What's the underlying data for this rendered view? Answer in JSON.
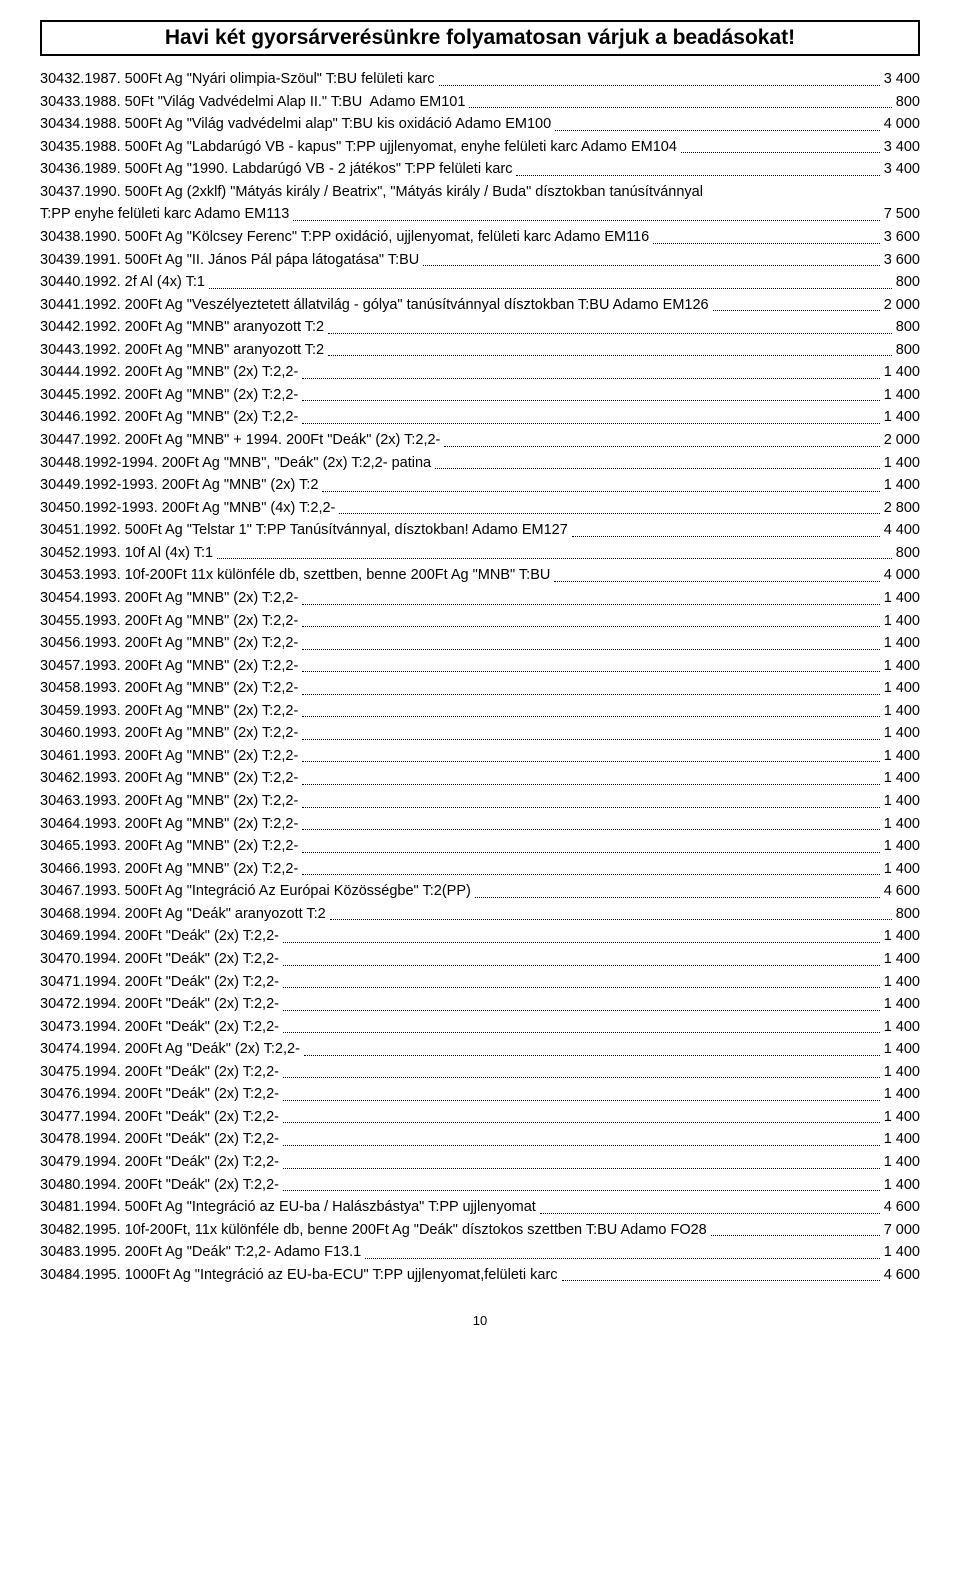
{
  "header": "Havi két gyorsárverésünkre folyamatosan várjuk a beadásokat!",
  "page_number": "10",
  "items": [
    {
      "n": "30432.",
      "d": "1987. 500Ft Ag \"Nyári olimpia-Szöul\" T:BU felületi karc",
      "p": "3 400"
    },
    {
      "n": "30433.",
      "d": "1988. 50Ft \"Világ Vadvédelmi Alap II.\" T:BU  Adamo EM101",
      "p": "800"
    },
    {
      "n": "30434.",
      "d": "1988. 500Ft Ag \"Világ vadvédelmi alap\" T:BU kis oxidáció Adamo EM100",
      "p": "4 000"
    },
    {
      "n": "30435.",
      "d": "1988. 500Ft Ag \"Labdarúgó VB - kapus\" T:PP ujjlenyomat, enyhe felületi karc Adamo EM104",
      "p": "3 400"
    },
    {
      "n": "30436.",
      "d": "1989. 500Ft Ag \"1990. Labdarúgó VB - 2 játékos\" T:PP felületi karc",
      "p": "3 400"
    },
    {
      "n": "30437.",
      "d": "1990. 500Ft Ag (2xklf) \"Mátyás király / Beatrix\", \"Mátyás király / Buda\" dísztokban tanúsítvánnyal",
      "d2": "T:PP enyhe felületi karc Adamo EM113",
      "p": "7 500"
    },
    {
      "n": "30438.",
      "d": "1990. 500Ft Ag \"Kölcsey Ferenc\" T:PP oxidáció, ujjlenyomat, felületi karc Adamo EM116",
      "p": "3 600"
    },
    {
      "n": "30439.",
      "d": "1991. 500Ft Ag \"II. János Pál pápa látogatása\" T:BU",
      "p": "3 600"
    },
    {
      "n": "30440.",
      "d": "1992. 2f Al (4x) T:1",
      "p": "800"
    },
    {
      "n": "30441.",
      "d": "1992. 200Ft Ag \"Veszélyeztetett állatvilág - gólya\" tanúsítvánnyal dísztokban T:BU Adamo EM126",
      "p": "2 000"
    },
    {
      "n": "30442.",
      "d": "1992. 200Ft Ag \"MNB\" aranyozott T:2",
      "p": "800"
    },
    {
      "n": "30443.",
      "d": "1992. 200Ft Ag \"MNB\" aranyozott T:2",
      "p": "800"
    },
    {
      "n": "30444.",
      "d": "1992. 200Ft Ag \"MNB\" (2x) T:2,2-",
      "p": "1 400"
    },
    {
      "n": "30445.",
      "d": "1992. 200Ft Ag \"MNB\" (2x) T:2,2-",
      "p": "1 400"
    },
    {
      "n": "30446.",
      "d": "1992. 200Ft Ag \"MNB\" (2x) T:2,2-",
      "p": "1 400"
    },
    {
      "n": "30447.",
      "d": "1992. 200Ft Ag \"MNB\" + 1994. 200Ft \"Deák\" (2x) T:2,2-",
      "p": "2 000"
    },
    {
      "n": "30448.",
      "d": "1992-1994. 200Ft Ag \"MNB\", \"Deák\" (2x) T:2,2- patina",
      "p": "1 400"
    },
    {
      "n": "30449.",
      "d": "1992-1993. 200Ft Ag \"MNB\" (2x) T:2",
      "p": "1 400"
    },
    {
      "n": "30450.",
      "d": "1992-1993. 200Ft Ag \"MNB\" (4x) T:2,2-",
      "p": "2 800"
    },
    {
      "n": "30451.",
      "d": "1992. 500Ft Ag \"Telstar 1\" T:PP Tanúsítvánnyal, dísztokban! Adamo EM127",
      "p": "4 400"
    },
    {
      "n": "30452.",
      "d": "1993. 10f Al (4x) T:1",
      "p": "800"
    },
    {
      "n": "30453.",
      "d": "1993. 10f-200Ft 11x különféle db, szettben, benne 200Ft Ag \"MNB\" T:BU",
      "p": "4 000"
    },
    {
      "n": "30454.",
      "d": "1993. 200Ft Ag \"MNB\" (2x) T:2,2-",
      "p": "1 400"
    },
    {
      "n": "30455.",
      "d": "1993. 200Ft Ag \"MNB\" (2x) T:2,2-",
      "p": "1 400"
    },
    {
      "n": "30456.",
      "d": "1993. 200Ft Ag \"MNB\" (2x) T:2,2-",
      "p": "1 400"
    },
    {
      "n": "30457.",
      "d": "1993. 200Ft Ag \"MNB\" (2x) T:2,2-",
      "p": "1 400"
    },
    {
      "n": "30458.",
      "d": "1993. 200Ft Ag \"MNB\" (2x) T:2,2-",
      "p": "1 400"
    },
    {
      "n": "30459.",
      "d": "1993. 200Ft Ag \"MNB\" (2x) T:2,2-",
      "p": "1 400"
    },
    {
      "n": "30460.",
      "d": "1993. 200Ft Ag \"MNB\" (2x) T:2,2-",
      "p": "1 400"
    },
    {
      "n": "30461.",
      "d": "1993. 200Ft Ag \"MNB\" (2x) T:2,2-",
      "p": "1 400"
    },
    {
      "n": "30462.",
      "d": "1993. 200Ft Ag \"MNB\" (2x) T:2,2-",
      "p": "1 400"
    },
    {
      "n": "30463.",
      "d": "1993. 200Ft Ag \"MNB\" (2x) T:2,2-",
      "p": "1 400"
    },
    {
      "n": "30464.",
      "d": "1993. 200Ft Ag \"MNB\" (2x) T:2,2-",
      "p": "1 400"
    },
    {
      "n": "30465.",
      "d": "1993. 200Ft Ag \"MNB\" (2x) T:2,2-",
      "p": "1 400"
    },
    {
      "n": "30466.",
      "d": "1993. 200Ft Ag \"MNB\" (2x) T:2,2-",
      "p": "1 400"
    },
    {
      "n": "30467.",
      "d": "1993. 500Ft Ag \"Integráció Az Európai Közösségbe\" T:2(PP)",
      "p": "4 600"
    },
    {
      "n": "30468.",
      "d": "1994. 200Ft Ag \"Deák\" aranyozott T:2",
      "p": "800"
    },
    {
      "n": "30469.",
      "d": "1994. 200Ft \"Deák\" (2x) T:2,2-",
      "p": "1 400"
    },
    {
      "n": "30470.",
      "d": "1994. 200Ft \"Deák\" (2x) T:2,2-",
      "p": "1 400"
    },
    {
      "n": "30471.",
      "d": "1994. 200Ft \"Deák\" (2x) T:2,2-",
      "p": "1 400"
    },
    {
      "n": "30472.",
      "d": "1994. 200Ft \"Deák\" (2x) T:2,2-",
      "p": "1 400"
    },
    {
      "n": "30473.",
      "d": "1994. 200Ft \"Deák\" (2x) T:2,2-",
      "p": "1 400"
    },
    {
      "n": "30474.",
      "d": "1994. 200Ft Ag \"Deák\" (2x) T:2,2-",
      "p": "1 400"
    },
    {
      "n": "30475.",
      "d": "1994. 200Ft \"Deák\" (2x) T:2,2-",
      "p": "1 400"
    },
    {
      "n": "30476.",
      "d": "1994. 200Ft \"Deák\" (2x) T:2,2-",
      "p": "1 400"
    },
    {
      "n": "30477.",
      "d": "1994. 200Ft \"Deák\" (2x) T:2,2-",
      "p": "1 400"
    },
    {
      "n": "30478.",
      "d": "1994. 200Ft \"Deák\" (2x) T:2,2-",
      "p": "1 400"
    },
    {
      "n": "30479.",
      "d": "1994. 200Ft \"Deák\" (2x) T:2,2-",
      "p": "1 400"
    },
    {
      "n": "30480.",
      "d": "1994. 200Ft \"Deák\" (2x) T:2,2-",
      "p": "1 400"
    },
    {
      "n": "30481.",
      "d": "1994. 500Ft Ag \"Integráció az EU-ba / Halászbástya\" T:PP ujjlenyomat",
      "p": "4 600"
    },
    {
      "n": "30482.",
      "d": "1995. 10f-200Ft, 11x különféle db, benne 200Ft Ag \"Deák\" dísztokos szettben T:BU Adamo FO28",
      "p": "7 000"
    },
    {
      "n": "30483.",
      "d": "1995. 200Ft Ag \"Deák\" T:2,2- Adamo F13.1",
      "p": "1 400"
    },
    {
      "n": "30484.",
      "d": "1995. 1000Ft Ag \"Integráció az EU-ba-ECU\" T:PP ujjlenyomat,felületi karc",
      "p": "4 600"
    }
  ]
}
